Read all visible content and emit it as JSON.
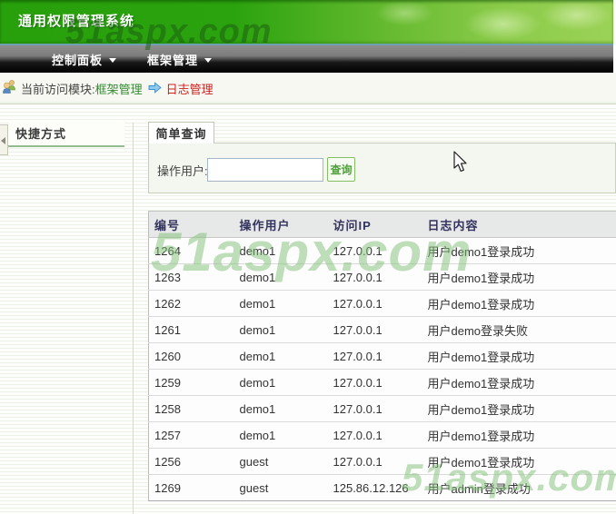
{
  "app": {
    "title": "通用权限管理系统"
  },
  "menu": {
    "items": [
      {
        "label": "控制面板"
      },
      {
        "label": "框架管理"
      }
    ]
  },
  "breadcrumb": {
    "prefix": "当前访问模块:",
    "module": "框架管理",
    "current": "日志管理"
  },
  "sidebar": {
    "title": "快捷方式"
  },
  "main": {
    "tab": "简单查询",
    "search": {
      "label": "操作用户:",
      "value": "",
      "button": "查询"
    },
    "table": {
      "columns": [
        "编号",
        "操作用户",
        "访问IP",
        "日志内容"
      ],
      "rows": [
        [
          "1264",
          "demo1",
          "127.0.0.1",
          "用户demo1登录成功"
        ],
        [
          "1263",
          "demo1",
          "127.0.0.1",
          "用户demo1登录成功"
        ],
        [
          "1262",
          "demo1",
          "127.0.0.1",
          "用户demo1登录成功"
        ],
        [
          "1261",
          "demo1",
          "127.0.0.1",
          "用户demo登录失败"
        ],
        [
          "1260",
          "demo1",
          "127.0.0.1",
          "用户demo1登录成功"
        ],
        [
          "1259",
          "demo1",
          "127.0.0.1",
          "用户demo1登录成功"
        ],
        [
          "1258",
          "demo1",
          "127.0.0.1",
          "用户demo1登录成功"
        ],
        [
          "1257",
          "demo1",
          "127.0.0.1",
          "用户demo1登录成功"
        ],
        [
          "1256",
          "guest",
          "127.0.0.1",
          "用户demo1登录成功"
        ],
        [
          "1269",
          "guest",
          "125.86.12.126",
          "用户admin登录成功"
        ]
      ]
    }
  },
  "watermark": {
    "text": "51aspx.com"
  },
  "colors": {
    "banner_green": "#2ba30e",
    "module_link_green": "#338a33",
    "current_link_red": "#cc2222",
    "button_green": "#4d9e3a",
    "table_header_text": "#34345e",
    "watermark_green": "#80be76"
  }
}
